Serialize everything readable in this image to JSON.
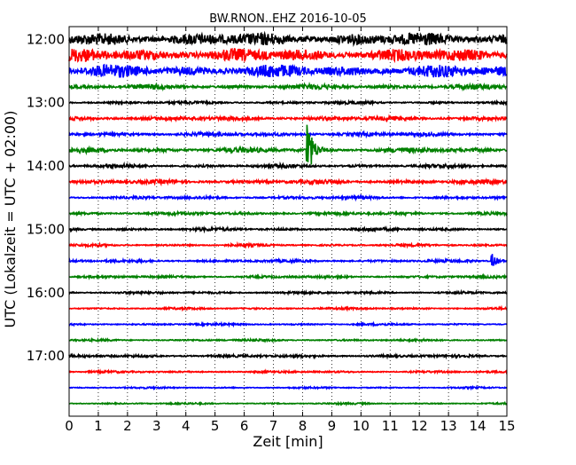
{
  "chart_data": {
    "type": "line",
    "title": "BW.RNON..EHZ 2016-10-05",
    "xlabel": "Zeit  [min]",
    "ylabel": "UTC (Lokalzeit = UTC + 02:00)",
    "xlim": [
      0,
      15
    ],
    "x_ticks": [
      "0",
      "1",
      "2",
      "3",
      "4",
      "5",
      "6",
      "7",
      "8",
      "9",
      "10",
      "11",
      "12",
      "13",
      "14",
      "15"
    ],
    "y_ticks": [
      {
        "label": "12:00",
        "hour": 12.0
      },
      {
        "label": "13:00",
        "hour": 13.0
      },
      {
        "label": "14:00",
        "hour": 14.0
      },
      {
        "label": "15:00",
        "hour": 15.0
      },
      {
        "label": "16:00",
        "hour": 16.0
      },
      {
        "label": "17:00",
        "hour": 17.0
      }
    ],
    "ylim_hours": [
      11.8,
      17.95
    ],
    "grid_x": "dotted",
    "color_cycle": [
      "#000000",
      "#ff0000",
      "#0000ff",
      "#008000"
    ],
    "traces": [
      {
        "start": "12:00",
        "amplitude": 0.95
      },
      {
        "start": "12:15",
        "amplitude": 0.95
      },
      {
        "start": "12:30",
        "amplitude": 0.9
      },
      {
        "start": "12:45",
        "amplitude": 0.35
      },
      {
        "start": "13:00",
        "amplitude": 0.2
      },
      {
        "start": "13:15",
        "amplitude": 0.3
      },
      {
        "start": "13:30",
        "amplitude": 0.28
      },
      {
        "start": "13:45",
        "amplitude": 0.35,
        "events": [
          {
            "minute": 8.15,
            "amplitude": 4.2
          }
        ]
      },
      {
        "start": "14:00",
        "amplitude": 0.25
      },
      {
        "start": "14:15",
        "amplitude": 0.3
      },
      {
        "start": "14:30",
        "amplitude": 0.22
      },
      {
        "start": "14:45",
        "amplitude": 0.22
      },
      {
        "start": "15:00",
        "amplitude": 0.22
      },
      {
        "start": "15:15",
        "amplitude": 0.18
      },
      {
        "start": "15:30",
        "amplitude": 0.2,
        "events": [
          {
            "minute": 14.5,
            "amplitude": 0.9
          }
        ]
      },
      {
        "start": "15:45",
        "amplitude": 0.18
      },
      {
        "start": "16:00",
        "amplitude": 0.18
      },
      {
        "start": "16:15",
        "amplitude": 0.15
      },
      {
        "start": "16:30",
        "amplitude": 0.15
      },
      {
        "start": "16:45",
        "amplitude": 0.15
      },
      {
        "start": "17:00",
        "amplitude": 0.2
      },
      {
        "start": "17:15",
        "amplitude": 0.15
      },
      {
        "start": "17:30",
        "amplitude": 0.12
      },
      {
        "start": "17:45",
        "amplitude": 0.12
      }
    ]
  }
}
